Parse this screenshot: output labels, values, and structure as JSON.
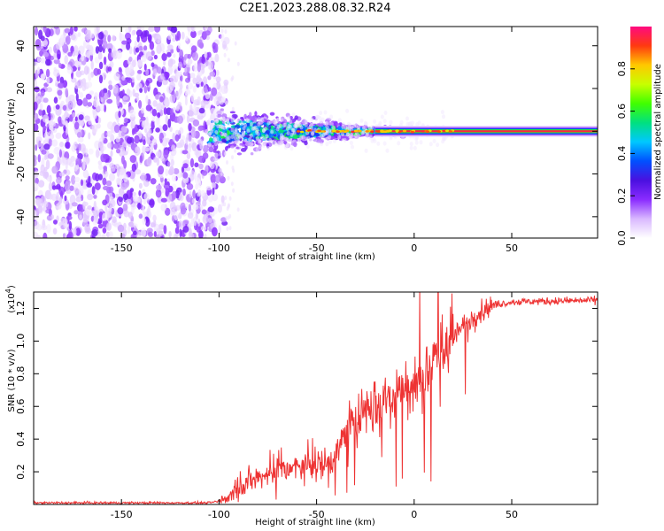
{
  "title": "C2E1.2023.288.08.32.R24",
  "colors": {
    "snr_line": "#ee3333",
    "spectrogram_noise": "#7a1cf0",
    "colorbar_stops": [
      "#ffffff",
      "#d9b8ff",
      "#8a2cff",
      "#4a10e0",
      "#0050ff",
      "#00c8ff",
      "#00e080",
      "#40ff00",
      "#c8ff00",
      "#ffc800",
      "#ff3a10",
      "#ff0a80"
    ]
  },
  "chart_data": [
    {
      "type": "heatmap",
      "name": "spectrogram",
      "xlabel": "Height of straight line (km)",
      "ylabel": "Frequency (Hz)",
      "xlim": [
        -195,
        94
      ],
      "ylim": [
        -50,
        49
      ],
      "xticks": [
        -150,
        -100,
        -50,
        0,
        50
      ],
      "xtick_labels": [
        "-150",
        "-100",
        "-50",
        "0",
        "50"
      ],
      "yticks": [
        -40,
        -20,
        0,
        20,
        40
      ],
      "ytick_labels": [
        "-40",
        "-20",
        "0",
        "20",
        "40"
      ],
      "colorbar": {
        "label": "Normalized spectral amplitude",
        "range": [
          0,
          1
        ],
        "ticks": [
          0.0,
          0.2,
          0.4,
          0.6,
          0.8
        ],
        "tick_labels": [
          "0.0",
          "0.2",
          "0.4",
          "0.6",
          "0.8"
        ]
      },
      "regions": [
        {
          "name": "noise",
          "x_from": -195,
          "x_to": -100,
          "freq_from": -50,
          "freq_to": 49,
          "amplitude": 0.15
        },
        {
          "name": "spread-signal",
          "x_from": -105,
          "x_to": -20,
          "spread_start_hz": 12,
          "spread_end_hz": 2,
          "amplitude": 0.3
        },
        {
          "name": "narrow-carrier",
          "x_from": -20,
          "x_to": 94,
          "freq_center": 0,
          "width_hz": 2,
          "amplitude": 0.95
        }
      ]
    },
    {
      "type": "line",
      "name": "snr",
      "xlabel": "Height of straight line (km)",
      "ylabel": "SNR (10 * v/v)",
      "y_multiplier": "(x10",
      "y_multiplier_exp": "4",
      "y_multiplier_close": ")",
      "xlim": [
        -195,
        94
      ],
      "ylim": [
        0,
        1.3
      ],
      "xticks": [
        -150,
        -100,
        -50,
        0,
        50
      ],
      "xtick_labels": [
        "-150",
        "-100",
        "-50",
        "0",
        "50"
      ],
      "yticks": [
        0.2,
        0.4,
        0.6,
        0.8,
        1.0,
        1.2
      ],
      "ytick_labels": [
        "0.2",
        "0.4",
        "0.6",
        "0.8",
        "1.0",
        "1.2"
      ],
      "trend": {
        "x": [
          -195,
          -105,
          -100,
          -95,
          -90,
          -70,
          -55,
          -45,
          -40,
          -38,
          -30,
          -20,
          -15,
          0,
          10,
          20,
          30,
          40,
          50,
          94
        ],
        "y": [
          0.01,
          0.01,
          0.02,
          0.05,
          0.13,
          0.2,
          0.24,
          0.25,
          0.28,
          0.38,
          0.55,
          0.6,
          0.65,
          0.72,
          0.9,
          1.03,
          1.15,
          1.22,
          1.24,
          1.25
        ]
      }
    }
  ]
}
